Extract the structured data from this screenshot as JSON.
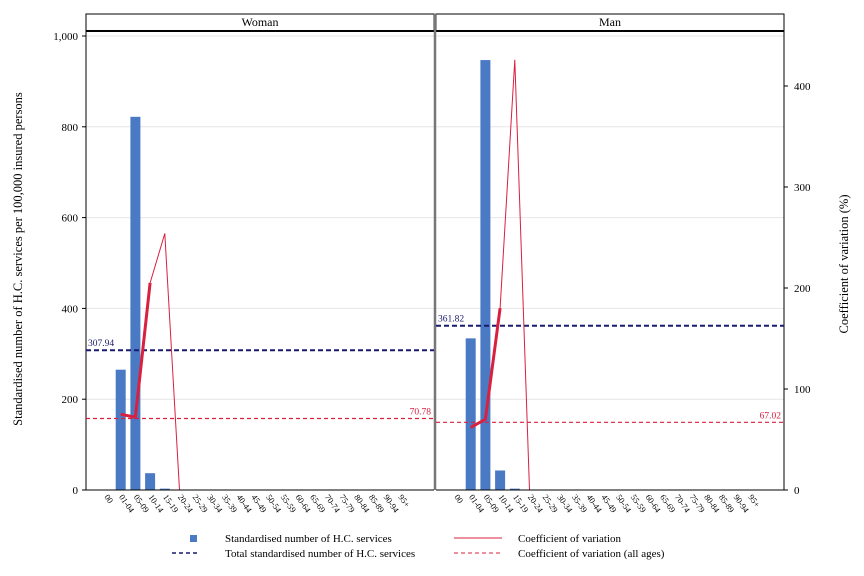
{
  "chart_data": {
    "type": "bar",
    "panels": [
      "Woman",
      "Man"
    ],
    "categories": [
      "00",
      "01-04",
      "05-09",
      "10-14",
      "15-19",
      "20-24",
      "25-29",
      "30-34",
      "35-39",
      "40-44",
      "45-49",
      "50-54",
      "55-59",
      "60-64",
      "65-69",
      "70-74",
      "75-79",
      "80-84",
      "85-89",
      "90-94",
      "95+"
    ],
    "ylabel": "Standardised number of H.C. services per 100,000 insured persons",
    "y2label": "Coefficient of variation (%)",
    "ylim": [
      0,
      1000
    ],
    "y2lim": [
      0,
      450
    ],
    "yticks": [
      "0",
      "200",
      "400",
      "600",
      "800",
      "1,000"
    ],
    "y2ticks": [
      "0",
      "100",
      "200",
      "300",
      "400"
    ],
    "grid": true,
    "legend_position": "bottom",
    "series": [
      {
        "name": "Standardised number of H.C. services",
        "panel": "Woman",
        "values": [
          0,
          265,
          822,
          37,
          3,
          0,
          0,
          0,
          0,
          0,
          0,
          0,
          0,
          0,
          0,
          0,
          0,
          0,
          0,
          0,
          0
        ]
      },
      {
        "name": "Standardised number of H.C. services",
        "panel": "Man",
        "values": [
          0,
          334,
          947,
          43,
          3,
          0,
          0,
          0,
          0,
          0,
          0,
          0,
          0,
          0,
          0,
          0,
          0,
          0,
          0,
          0,
          0
        ]
      },
      {
        "name": "Coefficient of variation",
        "panel": "Woman",
        "axis": "right",
        "values": [
          null,
          75,
          72,
          205,
          254,
          0,
          null,
          null,
          null,
          null,
          null,
          null,
          null,
          null,
          null,
          null,
          null,
          null,
          null,
          null,
          null
        ],
        "bold_range": [
          1,
          3
        ]
      },
      {
        "name": "Coefficient of variation",
        "panel": "Man",
        "axis": "right",
        "values": [
          null,
          62,
          70,
          180,
          426,
          0,
          null,
          null,
          null,
          null,
          null,
          null,
          null,
          null,
          null,
          null,
          null,
          null,
          null,
          null,
          null
        ],
        "bold_range": [
          1,
          3
        ]
      }
    ],
    "reference_lines": [
      {
        "name": "Total standardised number of H.C. services",
        "panel": "Woman",
        "axis": "left",
        "value": 307.94,
        "label": "307.94"
      },
      {
        "name": "Total standardised number of H.C. services",
        "panel": "Man",
        "axis": "left",
        "value": 361.82,
        "label": "361.82"
      },
      {
        "name": "Coefficient of variation (all ages)",
        "panel": "Woman",
        "axis": "right",
        "value": 70.78,
        "label": "70.78"
      },
      {
        "name": "Coefficient of variation (all ages)",
        "panel": "Man",
        "axis": "right",
        "value": 67.02,
        "label": "67.02"
      }
    ],
    "legend": [
      {
        "label": "Standardised number of H.C. services",
        "symbol": "square"
      },
      {
        "label": "Total standardised number of H.C. services",
        "symbol": "dashed-navy"
      },
      {
        "label": "Coefficient of variation",
        "symbol": "line-red"
      },
      {
        "label": "Coefficient of variation (all ages)",
        "symbol": "dashed-red"
      }
    ],
    "colors": {
      "bar": "#4a7ac4",
      "total_line": "#1a1a6e",
      "cv_line": "#d9203f",
      "cv_all_line": "#d9203f",
      "grid": "#e6e6e6"
    }
  }
}
